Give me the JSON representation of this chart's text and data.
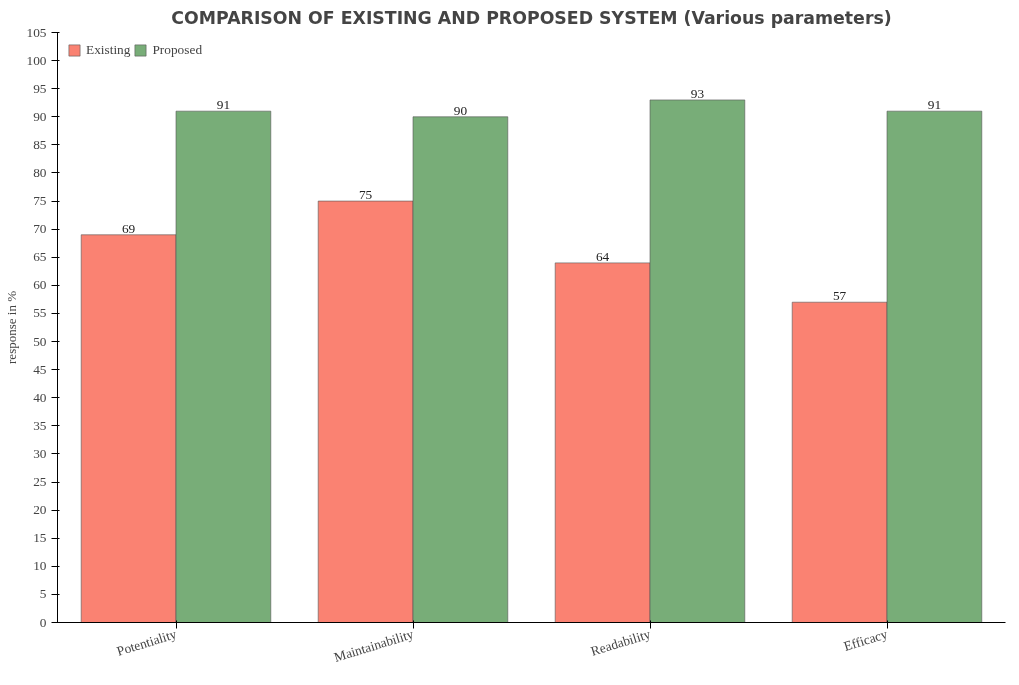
{
  "chart_data": {
    "type": "bar",
    "title": "COMPARISON OF EXISTING AND PROPOSED SYSTEM (Various parameters)",
    "ylabel": "response in %",
    "categories": [
      "Potentiality",
      "Maintainability",
      "Readability",
      "Efficacy"
    ],
    "series": [
      {
        "name": "Existing",
        "color": "#fa8272",
        "values": [
          69,
          75,
          64,
          57
        ]
      },
      {
        "name": "Proposed",
        "color": "#78ad78",
        "values": [
          91,
          90,
          93,
          91
        ]
      }
    ],
    "ylim": [
      0,
      105
    ],
    "yticks": [
      0,
      5,
      10,
      15,
      20,
      25,
      30,
      35,
      40,
      45,
      50,
      55,
      60,
      65,
      70,
      75,
      80,
      85,
      90,
      95,
      100,
      105
    ],
    "grid": false,
    "legend": "top left",
    "data_labels": true
  }
}
